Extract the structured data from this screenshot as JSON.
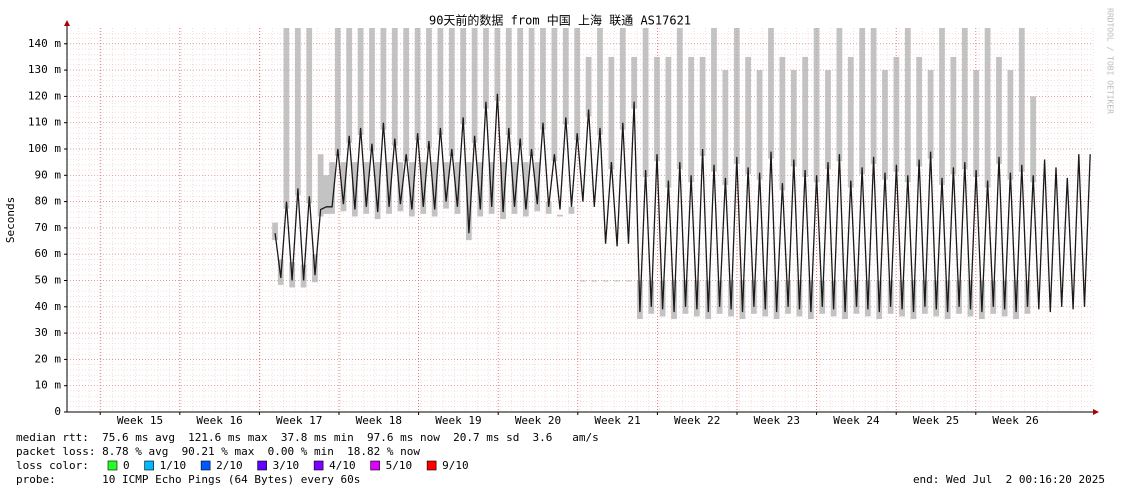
{
  "chart_data": {
    "type": "line",
    "title": "90天前的数据 from 中国 上海 联通 AS17621",
    "y_label": "Seconds",
    "watermark": "RRDTOOL / TOBI OETIKER",
    "x_labels": [
      "Week 15",
      "Week 16",
      "Week 17",
      "Week 18",
      "Week 19",
      "Week 20",
      "Week 21",
      "Week 22",
      "Week 23",
      "Week 24",
      "Week 25",
      "Week 26"
    ],
    "ylim": [
      0,
      0.146
    ],
    "yticks": [
      0,
      {
        "value": 0.01,
        "label": "10 m"
      },
      {
        "value": 0.02,
        "label": "20 m"
      },
      {
        "value": 0.03,
        "label": "30 m"
      },
      {
        "value": 0.04,
        "label": "40 m"
      },
      {
        "value": 0.05,
        "label": "50 m"
      },
      {
        "value": 0.06,
        "label": "60 m"
      },
      {
        "value": 0.07,
        "label": "70 m"
      },
      {
        "value": 0.08,
        "label": "80 m"
      },
      {
        "value": 0.09,
        "label": "90 m"
      },
      {
        "value": 0.1,
        "label": "100 m"
      },
      {
        "value": 0.11,
        "label": "110 m"
      },
      {
        "value": 0.12,
        "label": "120 m"
      },
      {
        "value": 0.13,
        "label": "130 m"
      },
      {
        "value": 0.14,
        "label": "140 m"
      }
    ],
    "grid": true,
    "series": [
      {
        "color": "#b4b4b4",
        "values": [
          null,
          null,
          null,
          null,
          null,
          null,
          null,
          null,
          null,
          null,
          null,
          null,
          null,
          null,
          null,
          null,
          null,
          null,
          null,
          null,
          null,
          null,
          null,
          null,
          null,
          null,
          null,
          null,
          null,
          null,
          null,
          null,
          null,
          null,
          null,
          null,
          0.072,
          0.058,
          0.146,
          0.057,
          0.146,
          0.056,
          0.146,
          0.06,
          0.098,
          0.09,
          0.095,
          0.146,
          0.095,
          0.146,
          0.095,
          0.146,
          0.095,
          0.146,
          0.095,
          0.146,
          0.095,
          0.146,
          0.095,
          0.146,
          0.095,
          0.146,
          0.095,
          0.146,
          0.095,
          0.146,
          0.095,
          0.146,
          0.095,
          0.146,
          0.095,
          0.146,
          0.095,
          0.146,
          0.095,
          0.146,
          0.095,
          0.146,
          0.095,
          0.146,
          0.095,
          0.146,
          0.095,
          0.146,
          0.08,
          0.146,
          0.075,
          0.146,
          0.078,
          0.146,
          0.05,
          0.135,
          0.05,
          0.146,
          0.05,
          0.135,
          0.05,
          0.146,
          0.05,
          0.135,
          0.05,
          0.146,
          0.05,
          0.135,
          0.05,
          0.135,
          0.05,
          0.146,
          0.05,
          0.135,
          0.05,
          0.135,
          0.05,
          0.146,
          0.05,
          0.13,
          0.05,
          0.146,
          0.05,
          0.135,
          0.05,
          0.13,
          0.05,
          0.146,
          0.05,
          0.135,
          0.05,
          0.13,
          0.05,
          0.135,
          0.05,
          0.146,
          0.05,
          0.13,
          0.05,
          0.146,
          0.05,
          0.135,
          0.05,
          0.146,
          0.05,
          0.146,
          0.05,
          0.13,
          0.05,
          0.135,
          0.05,
          0.146,
          0.05,
          0.135,
          0.05,
          0.13,
          0.05,
          0.146,
          0.05,
          0.135,
          0.05,
          0.146,
          0.05,
          0.13,
          0.05,
          0.146,
          0.05,
          0.135,
          0.05,
          0.13,
          0.05,
          0.146,
          0.05,
          0.12
        ]
      },
      {
        "color": "#1a1a1a",
        "values": [
          null,
          null,
          null,
          null,
          null,
          null,
          null,
          null,
          null,
          null,
          null,
          null,
          null,
          null,
          null,
          null,
          null,
          null,
          null,
          null,
          null,
          null,
          null,
          null,
          null,
          null,
          null,
          null,
          null,
          null,
          null,
          null,
          null,
          null,
          null,
          null,
          0.068,
          0.051,
          0.08,
          0.05,
          0.085,
          0.05,
          0.082,
          0.052,
          0.077,
          0.078,
          0.078,
          0.1,
          0.079,
          0.105,
          0.077,
          0.108,
          0.078,
          0.102,
          0.076,
          0.11,
          0.078,
          0.104,
          0.079,
          0.098,
          0.077,
          0.106,
          0.078,
          0.103,
          0.077,
          0.108,
          0.08,
          0.1,
          0.078,
          0.112,
          0.068,
          0.105,
          0.077,
          0.118,
          0.078,
          0.121,
          0.076,
          0.108,
          0.078,
          0.104,
          0.077,
          0.1,
          0.079,
          0.11,
          0.078,
          0.098,
          0.077,
          0.112,
          0.078,
          0.106,
          0.08,
          0.115,
          0.078,
          0.108,
          0.064,
          0.095,
          0.063,
          0.11,
          0.064,
          0.118,
          0.038,
          0.092,
          0.04,
          0.098,
          0.039,
          0.088,
          0.038,
          0.095,
          0.04,
          0.09,
          0.039,
          0.1,
          0.038,
          0.094,
          0.04,
          0.089,
          0.039,
          0.097,
          0.038,
          0.093,
          0.04,
          0.091,
          0.039,
          0.099,
          0.038,
          0.087,
          0.04,
          0.096,
          0.039,
          0.092,
          0.038,
          0.09,
          0.04,
          0.095,
          0.039,
          0.098,
          0.038,
          0.088,
          0.04,
          0.093,
          0.039,
          0.097,
          0.038,
          0.091,
          0.04,
          0.094,
          0.039,
          0.09,
          0.038,
          0.096,
          0.04,
          0.099,
          0.039,
          0.089,
          0.038,
          0.093,
          0.04,
          0.095,
          0.039,
          0.092,
          0.038,
          0.088,
          0.04,
          0.097,
          0.039,
          0.091,
          0.038,
          0.094,
          0.04,
          0.09,
          0.039,
          0.096,
          0.038,
          0.093,
          0.04,
          0.089,
          0.039,
          0.098,
          0.04,
          0.098
        ]
      }
    ],
    "stats": {
      "median_rtt": "median rtt:  75.6 ms avg  121.6 ms max  37.8 ms min  97.6 ms now  20.7 ms sd  3.6   am/s",
      "packet_loss": "packet loss: 8.78 % avg  90.21 % max  0.00 % min  18.82 % now",
      "loss_color_label": "loss color:",
      "loss_colors": [
        {
          "label": "0",
          "color": "#26ff26"
        },
        {
          "label": "1/10",
          "color": "#00b8ff"
        },
        {
          "label": "2/10",
          "color": "#0059ff"
        },
        {
          "label": "3/10",
          "color": "#5e00ff"
        },
        {
          "label": "4/10",
          "color": "#7e00ff"
        },
        {
          "label": "5/10",
          "color": "#dd00ff"
        },
        {
          "label": "9/10",
          "color": "#ff0000"
        }
      ],
      "probe": "probe:       10 ICMP Echo Pings (64 Bytes) every 60s",
      "end": "end: Wed Jul  2 00:16:20 2025"
    }
  }
}
